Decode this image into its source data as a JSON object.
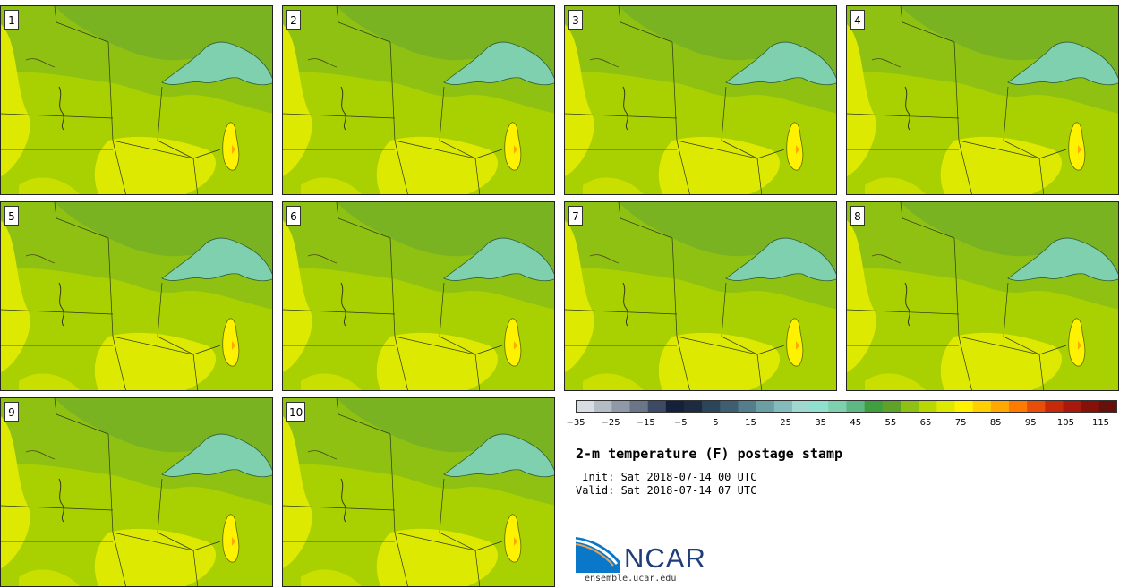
{
  "stamps": [
    {
      "label": "1"
    },
    {
      "label": "2"
    },
    {
      "label": "3"
    },
    {
      "label": "4"
    },
    {
      "label": "5"
    },
    {
      "label": "6"
    },
    {
      "label": "7"
    },
    {
      "label": "8"
    },
    {
      "label": "9"
    },
    {
      "label": "10"
    }
  ],
  "colorbar": {
    "labels": [
      "−35",
      "−25",
      "−15",
      "−5",
      "5",
      "15",
      "25",
      "35",
      "45",
      "55",
      "65",
      "75",
      "85",
      "95",
      "105",
      "115"
    ],
    "colors": [
      "#d8dde3",
      "#b4bcc6",
      "#8f99a7",
      "#6c7689",
      "#3c4a63",
      "#15213a",
      "#1c2b40",
      "#2b4658",
      "#3e5f71",
      "#557e8c",
      "#6c9ea6",
      "#84bcbd",
      "#9ed8cf",
      "#8fe0cd",
      "#7ed0ae",
      "#5eb884",
      "#3f9e3d",
      "#5ea229",
      "#8fc112",
      "#b9d700",
      "#dde900",
      "#fff200",
      "#ffd000",
      "#ffa800",
      "#ff7a00",
      "#e94d0a",
      "#c72a0a",
      "#a8180c",
      "#861108",
      "#65100a"
    ]
  },
  "title": "2-m temperature (F) postage stamp",
  "init": " Init: Sat 2018-07-14 00 UTC",
  "valid": "Valid: Sat 2018-07-14 07 UTC",
  "logo": {
    "text": "NCAR",
    "url": "ensemble.ucar.edu"
  }
}
